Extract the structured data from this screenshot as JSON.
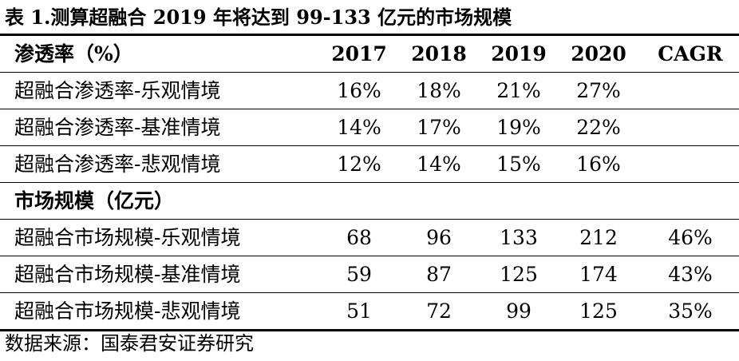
{
  "caption": "表 1.测算超融合 2019 年将达到 99-133 亿元的市场规模",
  "penetration_section": {
    "title": "渗透率（%）",
    "headers": [
      "2017",
      "2018",
      "2019",
      "2020",
      "CAGR"
    ],
    "rows": [
      {
        "label": "超融合渗透率-乐观情境",
        "values": [
          "16%",
          "18%",
          "21%",
          "27%",
          ""
        ]
      },
      {
        "label": "超融合渗透率-基准情境",
        "values": [
          "14%",
          "17%",
          "19%",
          "22%",
          ""
        ]
      },
      {
        "label": "超融合渗透率-悲观情境",
        "values": [
          "12%",
          "14%",
          "15%",
          "16%",
          ""
        ]
      }
    ]
  },
  "market_section": {
    "title": "市场规模（亿元）",
    "rows": [
      {
        "label": "超融合市场规模-乐观情境",
        "values": [
          "68",
          "96",
          "133",
          "212",
          "46%"
        ]
      },
      {
        "label": "超融合市场规模-基准情境",
        "values": [
          "59",
          "87",
          "125",
          "174",
          "43%"
        ]
      },
      {
        "label": "超融合市场规模-悲观情境",
        "values": [
          "51",
          "72",
          "99",
          "125",
          "35%"
        ]
      }
    ]
  },
  "source": "数据来源：国泰君安证券研究"
}
